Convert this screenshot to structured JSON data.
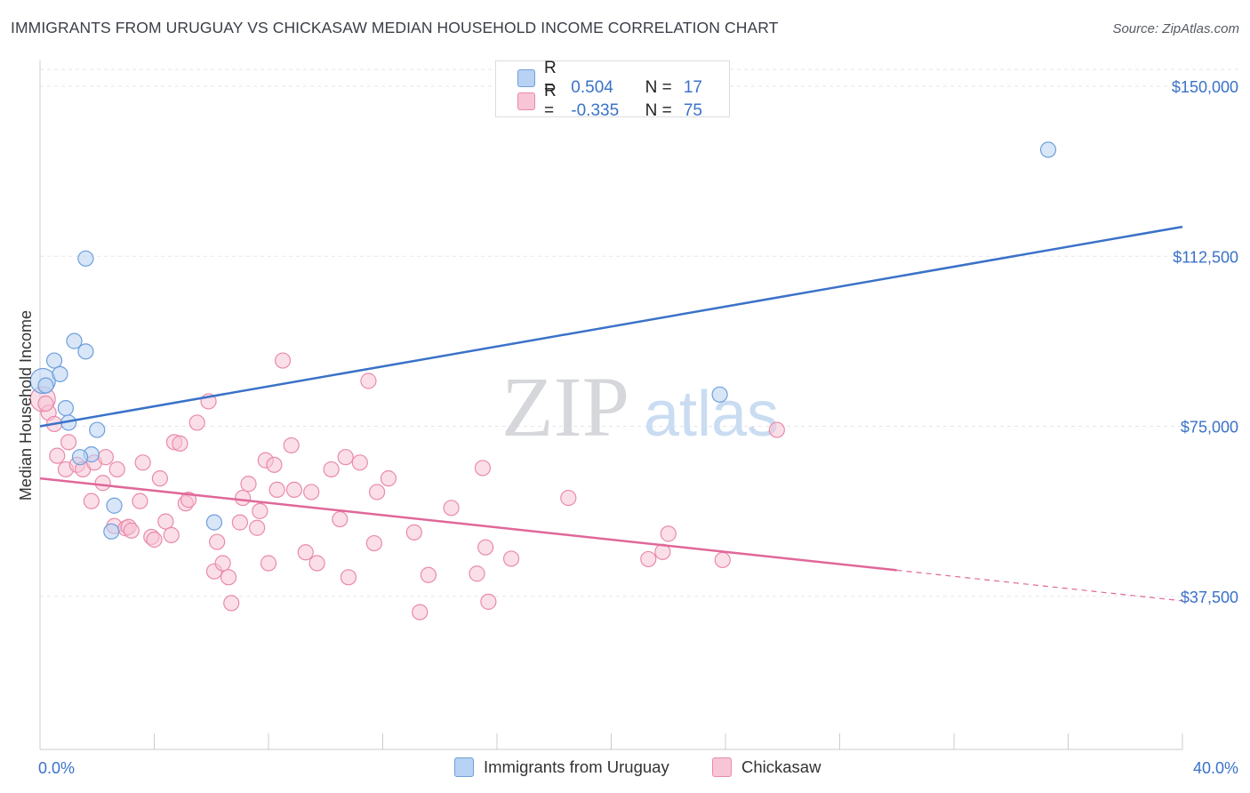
{
  "title": "IMMIGRANTS FROM URUGUAY VS CHICKASAW MEDIAN HOUSEHOLD INCOME CORRELATION CHART",
  "source": "Source: ZipAtlas.com",
  "watermark": {
    "zip": "ZIP",
    "atlas": "atlas"
  },
  "legend_top": {
    "rows": [
      {
        "r_label": "R =",
        "r_value": "0.504",
        "n_label": "N =",
        "n_value": "17",
        "color": "blue"
      },
      {
        "r_label": "R =",
        "r_value": "-0.335",
        "n_label": "N =",
        "n_value": "75",
        "color": "pink"
      }
    ]
  },
  "legend_bottom": {
    "items": [
      {
        "label": "Immigrants from Uruguay",
        "color": "blue"
      },
      {
        "label": "Chickasaw",
        "color": "pink"
      }
    ]
  },
  "colors": {
    "blue_fill": "#b8d2f3",
    "blue_stroke": "#6e9fdc",
    "blue_line": "#3a72c8",
    "pink_fill": "#f8c5d6",
    "pink_stroke": "#e98aaa",
    "pink_line": "#e0679a",
    "axis_label": "#3a72c8",
    "grid": "#e3e6ea"
  },
  "chart_data": {
    "type": "scatter",
    "title": "IMMIGRANTS FROM URUGUAY VS CHICKASAW MEDIAN HOUSEHOLD INCOME CORRELATION CHART",
    "xlabel": "",
    "ylabel": "Median Household Income",
    "xlim": [
      0,
      40
    ],
    "ylim": [
      0,
      150000
    ],
    "x_tick_labels": [
      {
        "value": 0,
        "label": "0.0%"
      },
      {
        "value": 40,
        "label": "40.0%"
      }
    ],
    "y_ticks": [
      {
        "value": 37500,
        "label": "$37,500"
      },
      {
        "value": 75000,
        "label": "$75,000"
      },
      {
        "value": 112500,
        "label": "$112,500"
      },
      {
        "value": 150000,
        "label": "$150,000"
      }
    ],
    "series": [
      {
        "name": "Immigrants from Uruguay",
        "color": "blue",
        "trend": {
          "x": [
            0,
            40
          ],
          "y": [
            75000,
            119000
          ],
          "dashed_from": null
        },
        "points": [
          {
            "x": 0.1,
            "y": 85000,
            "size": "large"
          },
          {
            "x": 0.5,
            "y": 89500
          },
          {
            "x": 0.7,
            "y": 86500
          },
          {
            "x": 1.2,
            "y": 93800
          },
          {
            "x": 1.6,
            "y": 91500
          },
          {
            "x": 1.6,
            "y": 112000
          },
          {
            "x": 0.9,
            "y": 79000
          },
          {
            "x": 1.0,
            "y": 75800
          },
          {
            "x": 2.0,
            "y": 74200
          },
          {
            "x": 1.8,
            "y": 68800
          },
          {
            "x": 1.4,
            "y": 68200
          },
          {
            "x": 2.6,
            "y": 57500
          },
          {
            "x": 2.5,
            "y": 51800
          },
          {
            "x": 6.1,
            "y": 53800
          },
          {
            "x": 23.8,
            "y": 82000
          },
          {
            "x": 35.3,
            "y": 136000
          },
          {
            "x": 0.2,
            "y": 84000
          }
        ]
      },
      {
        "name": "Chickasaw",
        "color": "pink",
        "trend": {
          "x": [
            0,
            40
          ],
          "y": [
            63500,
            36500
          ],
          "dashed_from": 30
        },
        "points": [
          {
            "x": 0.1,
            "y": 81000,
            "size": "large"
          },
          {
            "x": 0.3,
            "y": 78000
          },
          {
            "x": 0.5,
            "y": 75500
          },
          {
            "x": 0.6,
            "y": 68500
          },
          {
            "x": 0.9,
            "y": 65500
          },
          {
            "x": 1.0,
            "y": 71500
          },
          {
            "x": 1.3,
            "y": 66500
          },
          {
            "x": 1.5,
            "y": 65500
          },
          {
            "x": 1.8,
            "y": 58500
          },
          {
            "x": 1.9,
            "y": 67000
          },
          {
            "x": 2.2,
            "y": 62500
          },
          {
            "x": 2.3,
            "y": 68200
          },
          {
            "x": 2.7,
            "y": 65500
          },
          {
            "x": 2.6,
            "y": 53000
          },
          {
            "x": 3.0,
            "y": 52500
          },
          {
            "x": 3.1,
            "y": 52800
          },
          {
            "x": 3.2,
            "y": 52000
          },
          {
            "x": 3.5,
            "y": 58500
          },
          {
            "x": 3.6,
            "y": 67000
          },
          {
            "x": 3.9,
            "y": 50600
          },
          {
            "x": 4.0,
            "y": 50000
          },
          {
            "x": 4.2,
            "y": 63500
          },
          {
            "x": 4.4,
            "y": 54000
          },
          {
            "x": 4.6,
            "y": 51000
          },
          {
            "x": 4.7,
            "y": 71500
          },
          {
            "x": 4.9,
            "y": 71200
          },
          {
            "x": 5.1,
            "y": 58000
          },
          {
            "x": 5.2,
            "y": 58800
          },
          {
            "x": 5.5,
            "y": 75800
          },
          {
            "x": 5.9,
            "y": 80500
          },
          {
            "x": 6.1,
            "y": 43000
          },
          {
            "x": 6.2,
            "y": 49500
          },
          {
            "x": 6.4,
            "y": 44800
          },
          {
            "x": 6.6,
            "y": 41700
          },
          {
            "x": 6.7,
            "y": 36000
          },
          {
            "x": 7.0,
            "y": 53800
          },
          {
            "x": 7.1,
            "y": 59200
          },
          {
            "x": 7.3,
            "y": 62300
          },
          {
            "x": 7.6,
            "y": 52600
          },
          {
            "x": 7.7,
            "y": 56300
          },
          {
            "x": 7.9,
            "y": 67500
          },
          {
            "x": 8.0,
            "y": 44800
          },
          {
            "x": 8.2,
            "y": 66500
          },
          {
            "x": 8.3,
            "y": 61000
          },
          {
            "x": 8.5,
            "y": 89500
          },
          {
            "x": 8.8,
            "y": 70800
          },
          {
            "x": 8.9,
            "y": 61000
          },
          {
            "x": 9.3,
            "y": 47200
          },
          {
            "x": 9.5,
            "y": 60500
          },
          {
            "x": 9.7,
            "y": 44800
          },
          {
            "x": 10.2,
            "y": 65500
          },
          {
            "x": 10.5,
            "y": 54500
          },
          {
            "x": 10.7,
            "y": 68200
          },
          {
            "x": 10.8,
            "y": 41700
          },
          {
            "x": 11.2,
            "y": 67000
          },
          {
            "x": 11.5,
            "y": 85000
          },
          {
            "x": 11.7,
            "y": 49200
          },
          {
            "x": 11.8,
            "y": 60500
          },
          {
            "x": 12.2,
            "y": 63500
          },
          {
            "x": 13.1,
            "y": 51600
          },
          {
            "x": 13.3,
            "y": 34000
          },
          {
            "x": 13.6,
            "y": 42200
          },
          {
            "x": 14.4,
            "y": 57000
          },
          {
            "x": 15.3,
            "y": 42500
          },
          {
            "x": 15.5,
            "y": 65800
          },
          {
            "x": 15.6,
            "y": 48300
          },
          {
            "x": 15.7,
            "y": 36300
          },
          {
            "x": 16.5,
            "y": 45800
          },
          {
            "x": 18.5,
            "y": 59200
          },
          {
            "x": 21.3,
            "y": 45700
          },
          {
            "x": 21.8,
            "y": 47300
          },
          {
            "x": 22.0,
            "y": 51300
          },
          {
            "x": 23.9,
            "y": 45500
          },
          {
            "x": 25.8,
            "y": 74200
          },
          {
            "x": 0.2,
            "y": 80000
          }
        ]
      }
    ]
  }
}
